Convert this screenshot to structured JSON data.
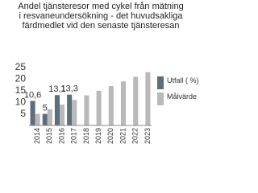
{
  "chart_data": {
    "type": "bar",
    "title": "Andel tjänsteresor med cykel från mätning i resvaneundersökning - det huvudsakliga färdmedlet vid den senaste tjänsteresan",
    "categories": [
      "2014",
      "2015",
      "2016",
      "2017",
      "2018",
      "2019",
      "2020",
      "2021",
      "2022",
      "2023"
    ],
    "series": [
      {
        "name": "Utfall ( %)",
        "color": "#5b6e7a",
        "values": [
          10.6,
          5,
          13.1,
          13.3,
          null,
          null,
          null,
          null,
          null,
          null
        ],
        "value_labels": [
          "10,6",
          "5",
          "13,1",
          "13,3",
          null,
          null,
          null,
          null,
          null,
          null
        ]
      },
      {
        "name": "Målvärde",
        "color": "#b9b9b9",
        "values": [
          5,
          7,
          9,
          11,
          13,
          15,
          17,
          19,
          21,
          23
        ]
      }
    ],
    "ylim": [
      0,
      25
    ],
    "yticks": [
      5,
      10,
      15,
      20,
      25
    ],
    "grid": false,
    "legend": "right"
  }
}
